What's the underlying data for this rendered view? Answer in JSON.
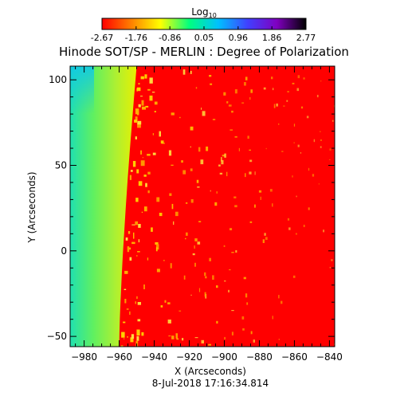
{
  "chart_data": {
    "type": "heatmap",
    "title": "Hinode SOT/SP - MERLIN : Degree of Polarization",
    "date_label": "8-Jul-2018 17:16:34.814",
    "xlabel": "X (Arcseconds)",
    "ylabel": "Y (Arcseconds)",
    "xlim": [
      -988,
      -837
    ],
    "ylim": [
      -56,
      108
    ],
    "x_ticks": [
      -980,
      -960,
      -940,
      -920,
      -900,
      -880,
      -860,
      -840
    ],
    "y_ticks": [
      -50,
      0,
      50,
      100
    ],
    "limb_x": [
      -960,
      -950
    ],
    "colorbar": {
      "title_base": "Log",
      "title_sub": "10",
      "tick_labels": [
        "-2.67",
        "-1.76",
        "-0.86",
        "0.05",
        "0.96",
        "1.86",
        "2.77"
      ],
      "range": [
        -2.67,
        2.77
      ],
      "colors": [
        "#ff0000",
        "#ff8000",
        "#ffff00",
        "#00ff80",
        "#00c0ff",
        "#4040ff",
        "#8000c0",
        "#000000"
      ]
    }
  }
}
